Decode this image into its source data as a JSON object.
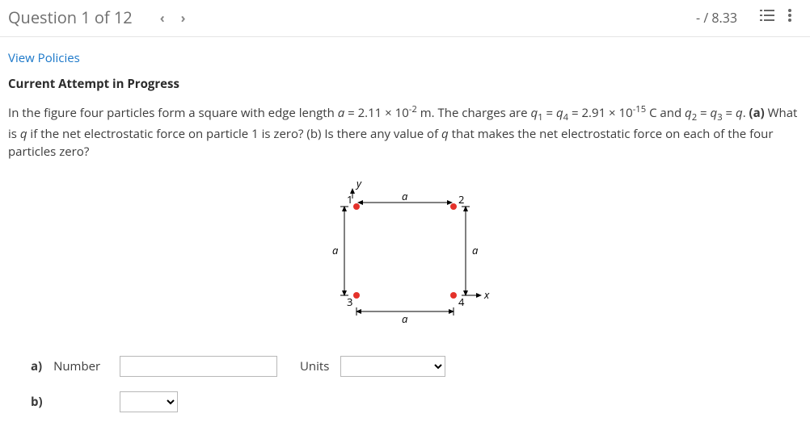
{
  "header": {
    "title": "Question 1 of 12",
    "score": "- / 8.33"
  },
  "links": {
    "policies": "View Policies"
  },
  "status": "Current Attempt in Progress",
  "problem": {
    "html": "In the figure four particles form a square with edge length <i>a</i> = 2.11 × 10<sup>-2</sup> m. The charges are <i>q</i><sub>1</sub> = <i>q</i><sub>4</sub> = 2.91 × 10<sup>-15</sup> C and <i>q</i><sub>2</sub> = <i>q</i><sub>3</sub> = <i>q</i>. <b>(a)</b> What is <i>q</i> if the net electrostatic force on particle 1 is zero? (b) Is there any value of <i>q</i> that makes the net electrostatic force on each of the four particles zero?"
  },
  "figure": {
    "colors": {
      "stroke": "#000000",
      "point_outer": "#e4312a",
      "point_fill_12": "#e4312a",
      "point_fill_34": "#e4312a",
      "text": "#000000"
    },
    "square_side": 140,
    "labels": {
      "y": "y",
      "x": "x",
      "a": "a",
      "p1": "1",
      "p2": "2",
      "p3": "3",
      "p4": "4"
    }
  },
  "answers": {
    "a_label": "a)",
    "a_number_label": "Number",
    "a_number_value": "",
    "a_units_label": "Units",
    "a_units_value": "",
    "b_label": "b)",
    "b_value": ""
  }
}
